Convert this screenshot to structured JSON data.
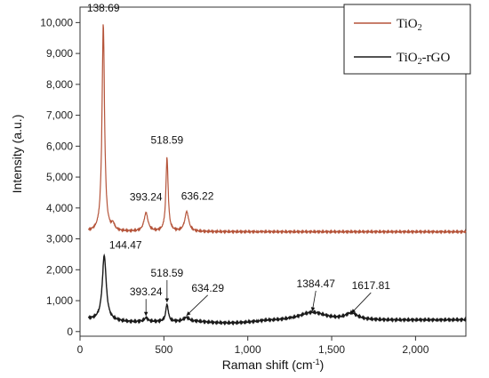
{
  "chart_data": {
    "type": "line",
    "title": "",
    "xlabel": "Raman shift (cm",
    "xlabel_sup": "-1",
    "xlabel_end": ")",
    "ylabel": "Intensity (a.u.)",
    "xlim": [
      0,
      2300
    ],
    "ylim": [
      -150,
      10500
    ],
    "x_ticks": [
      0,
      500,
      1000,
      1500,
      2000
    ],
    "x_tick_labels": [
      "0",
      "500",
      "1,000",
      "1,500",
      "2,000"
    ],
    "y_ticks": [
      0,
      1000,
      2000,
      3000,
      4000,
      5000,
      6000,
      7000,
      8000,
      9000,
      10000
    ],
    "y_tick_labels": [
      "0",
      "1,000",
      "2,000",
      "3,000",
      "4,000",
      "5,000",
      "6,000",
      "7,000",
      "8,000",
      "9,000",
      "10,000"
    ],
    "grid": false,
    "legend_position": "top-right",
    "series": [
      {
        "name": "TiO2",
        "legend_main": "TiO",
        "legend_sub": "2",
        "color": "#b5543a",
        "baseline": 3230,
        "peaks": [
          {
            "x": 138.69,
            "y": 9950,
            "width": 9,
            "label": "138.69"
          },
          {
            "x": 197,
            "y": 3420,
            "width": 10
          },
          {
            "x": 393.24,
            "y": 3830,
            "width": 14,
            "label": "393.24"
          },
          {
            "x": 518.59,
            "y": 5620,
            "width": 8,
            "label": "518.59"
          },
          {
            "x": 636.22,
            "y": 3870,
            "width": 14,
            "label": "636.22"
          }
        ]
      },
      {
        "name": "TiO2-rGO",
        "legend_main": "TiO",
        "legend_sub": "2",
        "legend_end": "-rGO",
        "color": "#1a1a1a",
        "baseline": 300,
        "peaks": [
          {
            "x": 144.47,
            "y": 2400,
            "width": 14,
            "label": "144.47"
          },
          {
            "x": 393.24,
            "y": 420,
            "width": 14,
            "label": "393.24"
          },
          {
            "x": 518.59,
            "y": 860,
            "width": 9,
            "label": "518.59"
          },
          {
            "x": 634.29,
            "y": 430,
            "width": 20,
            "label": "634.29"
          },
          {
            "x": 1384.47,
            "y": 570,
            "width": 100,
            "label": "1384.47"
          },
          {
            "x": 1617.81,
            "y": 510,
            "width": 45,
            "label": "1617.81"
          }
        ]
      }
    ]
  }
}
